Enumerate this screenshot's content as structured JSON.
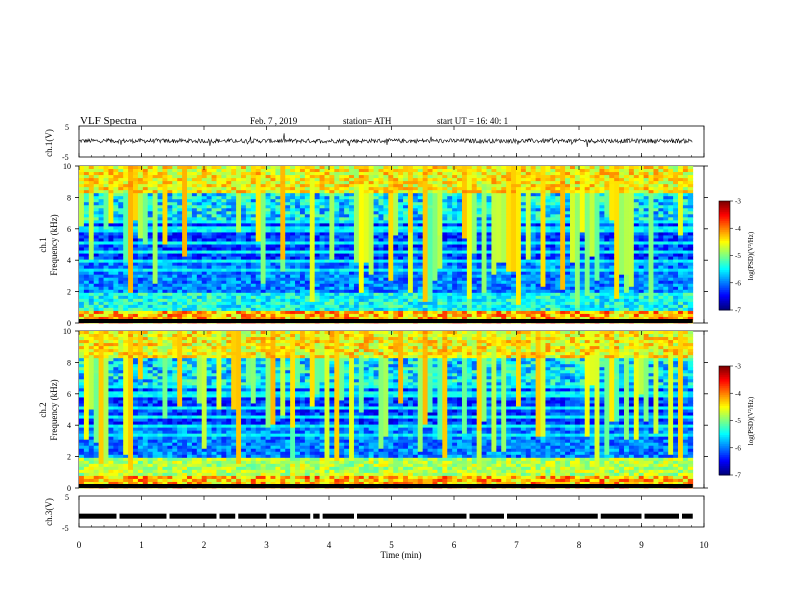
{
  "header": {
    "title": "VLF  Spectra",
    "date": "Feb. 7  , 2019",
    "station": "station= ATH",
    "start": "start  UT  =   16: 40: 1"
  },
  "chart_data": [
    {
      "type": "line",
      "panel": "ch1-waveform",
      "ylabel": "ch.1(V)",
      "ylim": [
        -5,
        5
      ],
      "yticks": [
        "5",
        "-5"
      ],
      "x_range_min": [
        0,
        9.82
      ],
      "description_values": "noisy waveform centered near 0.2 V with amplitude about ±1 V"
    },
    {
      "type": "heatmap",
      "panel": "ch1-spectrogram",
      "ylabel": "ch.1\nFrequency (kHz)",
      "ylabel_top": "ch.1",
      "ylabel_bottom": "Frequency  (kHz)",
      "ylim": [
        0,
        10
      ],
      "yticks": [
        "0",
        "2",
        "4",
        "6",
        "8",
        "10"
      ],
      "colorbar": {
        "label": "log(PSD)(V²/Hz)",
        "range": [
          -7,
          -3
        ],
        "ticks": [
          "-3",
          "-4",
          "-5",
          "-6",
          "-7"
        ],
        "colormap": "jet"
      }
    },
    {
      "type": "heatmap",
      "panel": "ch2-spectrogram",
      "ylabel_top": "ch.2",
      "ylabel_bottom": "Frequency  (kHz)",
      "ylim": [
        0,
        10
      ],
      "yticks": [
        "0",
        "2",
        "4",
        "6",
        "8",
        "10"
      ],
      "colorbar": {
        "label": "log(PSD)(V²/Hz)",
        "range": [
          -7,
          -3
        ],
        "ticks": [
          "-3",
          "-4",
          "-5",
          "-6",
          "-7"
        ],
        "colormap": "jet"
      }
    },
    {
      "type": "line",
      "panel": "ch3-signal",
      "ylabel": "ch.3(V)",
      "ylim": [
        -5,
        5
      ],
      "yticks": [
        "5",
        "-5"
      ],
      "level": -1.5,
      "gaps_min": [
        0.6,
        1.4,
        2.2,
        2.5,
        3.0,
        3.7,
        3.85,
        4.4,
        6.2,
        6.8,
        8.3,
        9.0,
        9.6
      ]
    }
  ],
  "x_axis": {
    "label": "Time  (min)",
    "ticks": [
      "0",
      "1",
      "2",
      "3",
      "4",
      "5",
      "6",
      "7",
      "8",
      "9",
      "10"
    ],
    "range": [
      0,
      10
    ]
  }
}
